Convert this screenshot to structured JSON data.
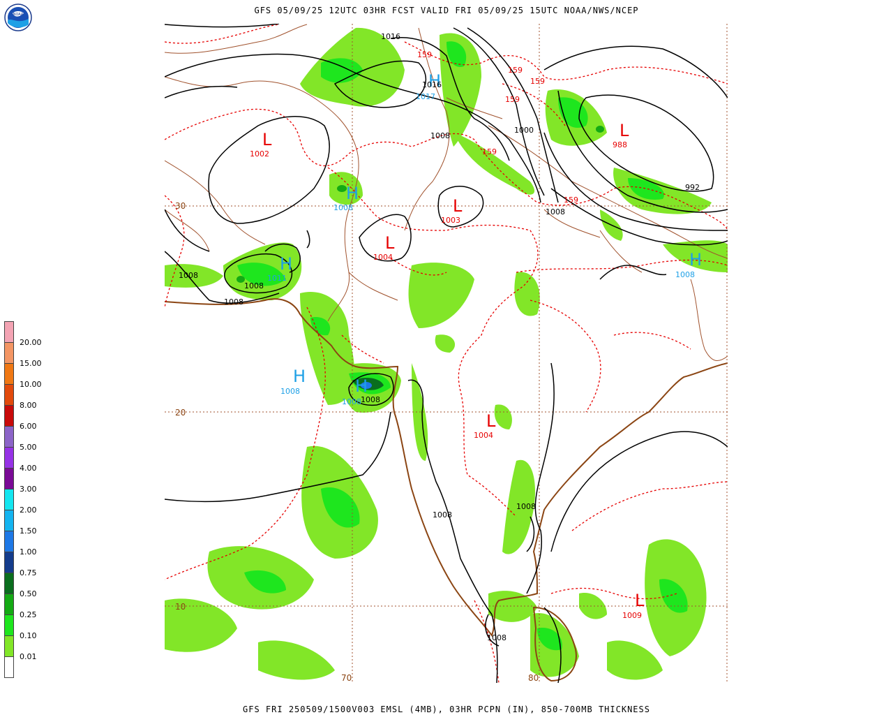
{
  "header": {
    "title": "GFS 05/09/25 12UTC 03HR FCST VALID FRI 05/09/25 15UTC NOAA/NWS/NCEP",
    "footer": "GFS FRI 250509/1500V003 EMSL (4MB), 03HR PCPN (IN), 850-700MB THICKNESS",
    "logo_text": "NOAA"
  },
  "legend": {
    "labels": [
      "20.00",
      "15.00",
      "10.00",
      "8.00",
      "6.00",
      "5.00",
      "4.00",
      "3.00",
      "2.00",
      "1.50",
      "1.00",
      "0.75",
      "0.50",
      "0.25",
      "0.10",
      "0.01"
    ],
    "colors": [
      "#f4a4b4",
      "#f49664",
      "#f07814",
      "#e24a0c",
      "#c80a0a",
      "#8c64c8",
      "#9632e6",
      "#7a0a96",
      "#14e6f0",
      "#14b4f0",
      "#1e78e6",
      "#143c8c",
      "#0a6e1e",
      "#14aa14",
      "#1ee61e",
      "#82e628",
      "#ffffff"
    ]
  },
  "grid_labels": {
    "lat_30": "30",
    "lat_20": "20",
    "lat_10": "10",
    "lon_70": "70",
    "lon_80": "80"
  },
  "pressure_centers": [
    {
      "type": "L",
      "value": "1002"
    },
    {
      "type": "H",
      "value": "1017"
    },
    {
      "type": "L",
      "value": "988"
    },
    {
      "type": "H",
      "value": "1008"
    },
    {
      "type": "L",
      "value": "1003"
    },
    {
      "type": "L",
      "value": "1004"
    },
    {
      "type": "H",
      "value": "1011"
    },
    {
      "type": "H",
      "value": "1008"
    },
    {
      "type": "H",
      "value": "1008"
    },
    {
      "type": "H",
      "value": "1008"
    },
    {
      "type": "L",
      "value": "1004"
    },
    {
      "type": "L",
      "value": "1009"
    }
  ],
  "isobar_labels": [
    "1016",
    "1016",
    "1008",
    "1000",
    "992",
    "1008",
    "1008",
    "1008",
    "1008",
    "1008",
    "1008",
    "1008",
    "1008"
  ],
  "thickness_labels": [
    "159",
    "159",
    "159",
    "159",
    "159",
    "159"
  ],
  "colors": {
    "high": "#1ea0e6",
    "low": "#e60000",
    "isobar": "#000000",
    "thickness": "#e60000",
    "coast": "#8b4513",
    "border": "#a0522d",
    "grid": "#a0522d"
  }
}
